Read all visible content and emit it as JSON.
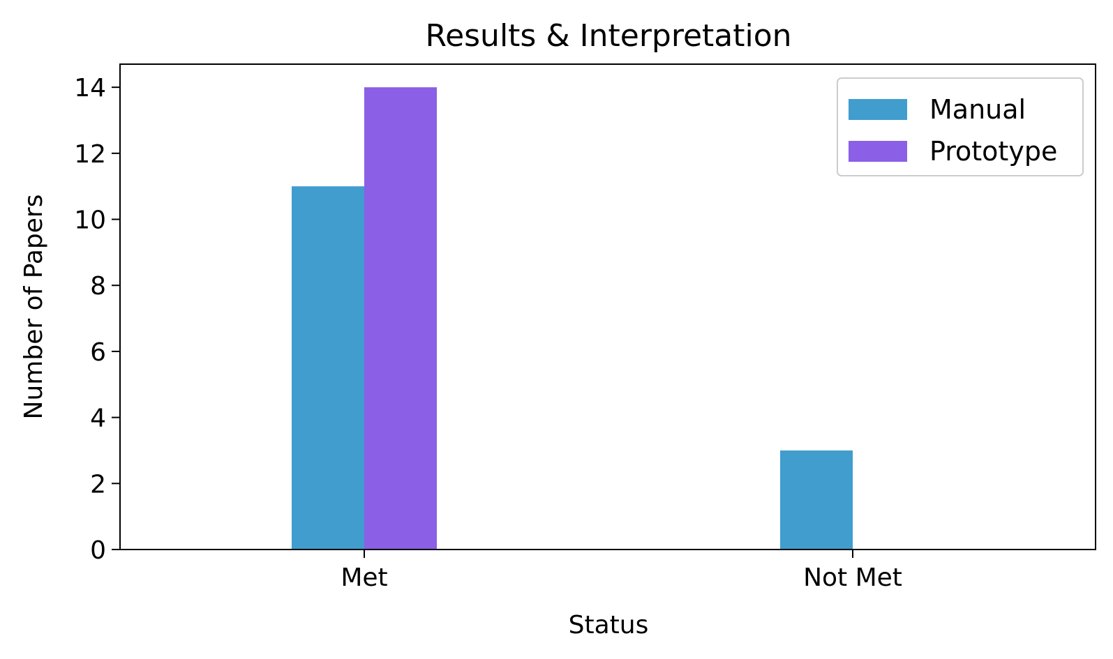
{
  "chart_data": {
    "type": "bar",
    "title": "Results & Interpretation",
    "xlabel": "Status",
    "ylabel": "Number of Papers",
    "categories": [
      "Met",
      "Not Met"
    ],
    "series": [
      {
        "name": "Manual",
        "color": "#409dce",
        "values": [
          11,
          3
        ]
      },
      {
        "name": "Prototype",
        "color": "#8b5fe6",
        "values": [
          14,
          0
        ]
      }
    ],
    "ylim": [
      0,
      14.7
    ],
    "yticks": [
      0,
      2,
      4,
      6,
      8,
      10,
      12,
      14
    ],
    "grid": false,
    "legend_position": "top-right"
  }
}
